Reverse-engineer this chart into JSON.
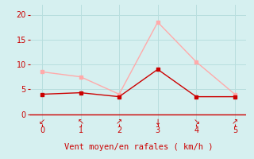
{
  "x": [
    0,
    1,
    2,
    3,
    4,
    5
  ],
  "y_moyen": [
    4.0,
    4.3,
    3.5,
    9.0,
    3.5,
    3.5
  ],
  "y_rafales": [
    8.5,
    7.5,
    4.0,
    18.5,
    10.5,
    4.0
  ],
  "line_color_moyen": "#cc0000",
  "line_color_rafales": "#ffaaaa",
  "background_color": "#d6f0f0",
  "xlabel": "Vent moyen/en rafales ( km/h )",
  "xlim": [
    -0.3,
    5.3
  ],
  "ylim": [
    -2.0,
    22
  ],
  "xticks": [
    0,
    1,
    2,
    3,
    4,
    5
  ],
  "yticks": [
    0,
    5,
    10,
    15,
    20
  ],
  "xlabel_color": "#cc0000",
  "xlabel_fontsize": 7.5,
  "tick_color": "#cc0000",
  "grid_color": "#b8dede",
  "axis_color": "#cc0000",
  "arrow_labels": [
    "↙",
    "↖",
    "↗",
    "↓",
    "↘",
    "↗"
  ]
}
